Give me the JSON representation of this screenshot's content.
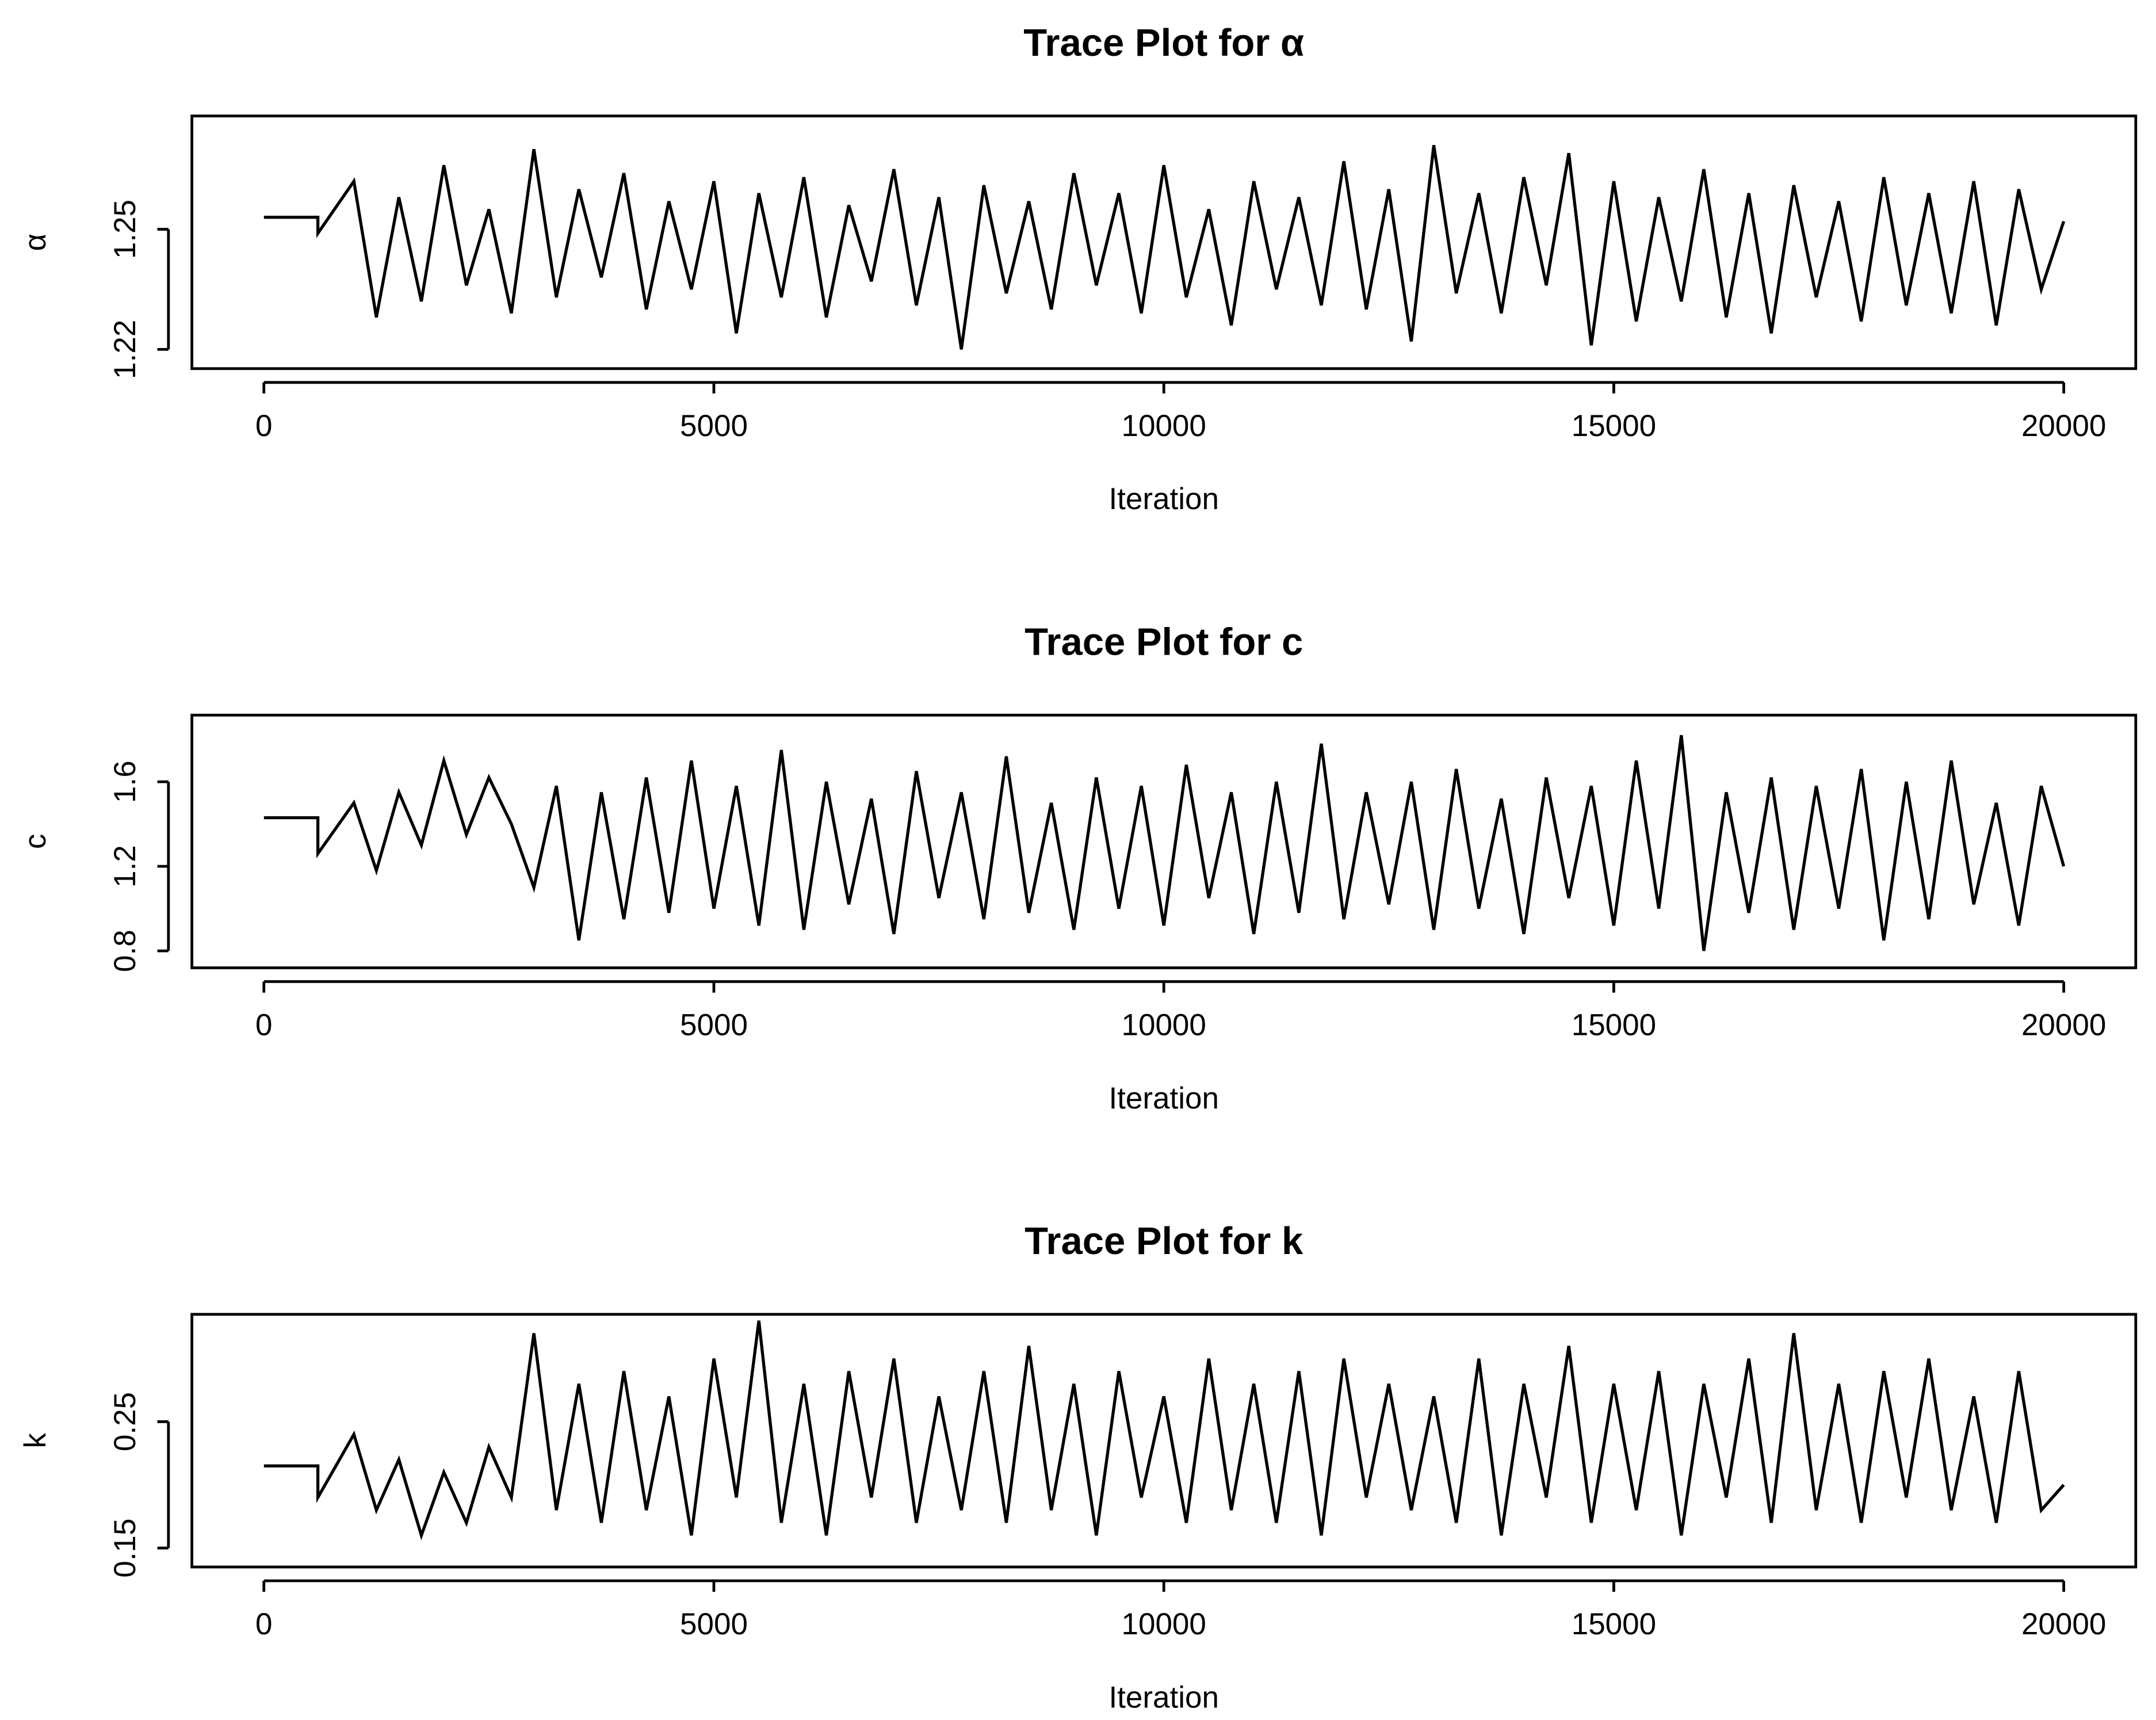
{
  "chart_data": [
    {
      "type": "line",
      "title": "Trace Plot for α",
      "xlabel": "Iteration",
      "ylabel": "α",
      "color": "#000000",
      "xlim": [
        -800,
        20800
      ],
      "ylim": [
        1.2152,
        1.2783
      ],
      "xticks": [
        0,
        5000,
        10000,
        15000,
        20000
      ],
      "yticks": [
        1.22,
        1.25
      ],
      "x": [
        0,
        600,
        600,
        1000,
        1250,
        1500,
        1750,
        2000,
        2250,
        2500,
        2750,
        3000,
        3250,
        3500,
        3750,
        4000,
        4250,
        4500,
        4750,
        5000,
        5250,
        5500,
        5750,
        6000,
        6250,
        6500,
        6750,
        7000,
        7250,
        7500,
        7750,
        8000,
        8250,
        8500,
        8750,
        9000,
        9250,
        9500,
        9750,
        10000,
        10250,
        10500,
        10750,
        11000,
        11250,
        11500,
        11750,
        12000,
        12250,
        12500,
        12750,
        13000,
        13250,
        13500,
        13750,
        14000,
        14250,
        14500,
        14750,
        15000,
        15250,
        15500,
        15750,
        16000,
        16250,
        16500,
        16750,
        17000,
        17250,
        17500,
        17750,
        18000,
        18250,
        18500,
        18750,
        19000,
        19250,
        19500,
        19750,
        20000
      ],
      "values": [
        1.253,
        1.253,
        1.249,
        1.262,
        1.228,
        1.258,
        1.232,
        1.266,
        1.236,
        1.255,
        1.229,
        1.27,
        1.233,
        1.26,
        1.238,
        1.264,
        1.23,
        1.257,
        1.235,
        1.262,
        1.224,
        1.259,
        1.233,
        1.263,
        1.228,
        1.256,
        1.237,
        1.265,
        1.231,
        1.258,
        1.22,
        1.261,
        1.234,
        1.257,
        1.23,
        1.264,
        1.236,
        1.259,
        1.229,
        1.266,
        1.233,
        1.255,
        1.226,
        1.262,
        1.235,
        1.258,
        1.231,
        1.267,
        1.23,
        1.26,
        1.222,
        1.271,
        1.234,
        1.259,
        1.229,
        1.263,
        1.236,
        1.269,
        1.221,
        1.262,
        1.227,
        1.258,
        1.232,
        1.265,
        1.228,
        1.259,
        1.224,
        1.261,
        1.233,
        1.257,
        1.227,
        1.263,
        1.231,
        1.259,
        1.229,
        1.262,
        1.226,
        1.26,
        1.235,
        1.252
      ]
    },
    {
      "type": "line",
      "title": "Trace Plot for c",
      "xlabel": "Iteration",
      "ylabel": "c",
      "color": "#000000",
      "xlim": [
        -800,
        20800
      ],
      "ylim": [
        0.72,
        1.915
      ],
      "xticks": [
        0,
        5000,
        10000,
        15000,
        20000
      ],
      "yticks": [
        0.8,
        1.2,
        1.6
      ],
      "x": [
        0,
        600,
        600,
        1000,
        1250,
        1500,
        1750,
        2000,
        2250,
        2500,
        2750,
        3000,
        3250,
        3500,
        3750,
        4000,
        4250,
        4500,
        4750,
        5000,
        5250,
        5500,
        5750,
        6000,
        6250,
        6500,
        6750,
        7000,
        7250,
        7500,
        7750,
        8000,
        8250,
        8500,
        8750,
        9000,
        9250,
        9500,
        9750,
        10000,
        10250,
        10500,
        10750,
        11000,
        11250,
        11500,
        11750,
        12000,
        12250,
        12500,
        12750,
        13000,
        13250,
        13500,
        13750,
        14000,
        14250,
        14500,
        14750,
        15000,
        15250,
        15500,
        15750,
        16000,
        16250,
        16500,
        16750,
        17000,
        17250,
        17500,
        17750,
        18000,
        18250,
        18500,
        18750,
        19000,
        19250,
        19500,
        19750,
        20000
      ],
      "values": [
        1.43,
        1.43,
        1.26,
        1.5,
        1.18,
        1.55,
        1.3,
        1.7,
        1.35,
        1.62,
        1.4,
        1.1,
        1.58,
        0.85,
        1.55,
        0.95,
        1.62,
        0.98,
        1.7,
        1.0,
        1.58,
        0.92,
        1.75,
        0.9,
        1.6,
        1.02,
        1.52,
        0.88,
        1.65,
        1.05,
        1.55,
        0.95,
        1.72,
        0.98,
        1.5,
        0.9,
        1.62,
        1.0,
        1.58,
        0.92,
        1.68,
        1.05,
        1.55,
        0.88,
        1.6,
        0.98,
        1.78,
        0.95,
        1.55,
        1.02,
        1.6,
        0.9,
        1.66,
        1.0,
        1.52,
        0.88,
        1.62,
        1.05,
        1.58,
        0.92,
        1.7,
        1.0,
        1.82,
        0.8,
        1.55,
        0.98,
        1.62,
        0.9,
        1.58,
        1.0,
        1.66,
        0.85,
        1.6,
        0.95,
        1.7,
        1.02,
        1.5,
        0.92,
        1.58,
        1.2
      ]
    },
    {
      "type": "line",
      "title": "Trace Plot for k",
      "xlabel": "Iteration",
      "ylabel": "k",
      "color": "#000000",
      "xlim": [
        -800,
        20800
      ],
      "ylim": [
        0.135,
        0.335
      ],
      "xticks": [
        0,
        5000,
        10000,
        15000,
        20000
      ],
      "yticks": [
        0.15,
        0.25
      ],
      "x": [
        0,
        600,
        600,
        1000,
        1250,
        1500,
        1750,
        2000,
        2250,
        2500,
        2750,
        3000,
        3250,
        3500,
        3750,
        4000,
        4250,
        4500,
        4750,
        5000,
        5250,
        5500,
        5750,
        6000,
        6250,
        6500,
        6750,
        7000,
        7250,
        7500,
        7750,
        8000,
        8250,
        8500,
        8750,
        9000,
        9250,
        9500,
        9750,
        10000,
        10250,
        10500,
        10750,
        11000,
        11250,
        11500,
        11750,
        12000,
        12250,
        12500,
        12750,
        13000,
        13250,
        13500,
        13750,
        14000,
        14250,
        14500,
        14750,
        15000,
        15250,
        15500,
        15750,
        16000,
        16250,
        16500,
        16750,
        17000,
        17250,
        17500,
        17750,
        18000,
        18250,
        18500,
        18750,
        19000,
        19250,
        19500,
        19750,
        20000
      ],
      "values": [
        0.215,
        0.215,
        0.19,
        0.24,
        0.18,
        0.22,
        0.16,
        0.21,
        0.17,
        0.23,
        0.19,
        0.32,
        0.18,
        0.28,
        0.17,
        0.29,
        0.18,
        0.27,
        0.16,
        0.3,
        0.19,
        0.33,
        0.17,
        0.28,
        0.16,
        0.29,
        0.19,
        0.3,
        0.17,
        0.27,
        0.18,
        0.29,
        0.17,
        0.31,
        0.18,
        0.28,
        0.16,
        0.29,
        0.19,
        0.27,
        0.17,
        0.3,
        0.18,
        0.28,
        0.17,
        0.29,
        0.16,
        0.3,
        0.19,
        0.28,
        0.18,
        0.27,
        0.17,
        0.3,
        0.16,
        0.28,
        0.19,
        0.31,
        0.17,
        0.28,
        0.18,
        0.29,
        0.16,
        0.28,
        0.19,
        0.3,
        0.17,
        0.32,
        0.18,
        0.28,
        0.17,
        0.29,
        0.19,
        0.3,
        0.18,
        0.27,
        0.17,
        0.29,
        0.18,
        0.2
      ]
    }
  ]
}
